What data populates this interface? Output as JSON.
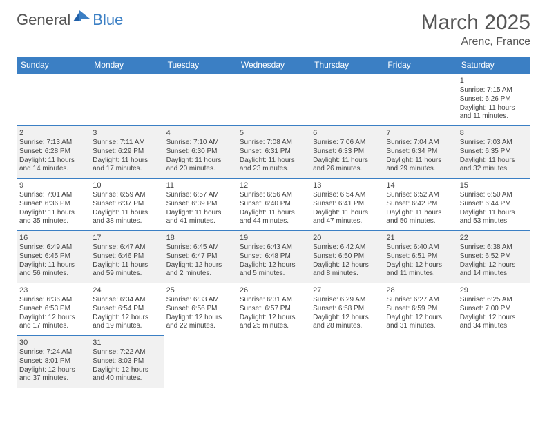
{
  "brand": {
    "general": "General",
    "blue": "Blue"
  },
  "title": "March 2025",
  "location": "Arenc, France",
  "weekdays": [
    "Sunday",
    "Monday",
    "Tuesday",
    "Wednesday",
    "Thursday",
    "Friday",
    "Saturday"
  ],
  "colors": {
    "header_bg": "#3b7fc4",
    "border": "#3b7fc4",
    "shade": "#f1f1f1",
    "logo_gray": "#555555",
    "logo_blue": "#3b7fc4"
  },
  "weeks": [
    [
      null,
      null,
      null,
      null,
      null,
      null,
      {
        "n": "1",
        "sr": "Sunrise: 7:15 AM",
        "ss": "Sunset: 6:26 PM",
        "dl": "Daylight: 11 hours and 11 minutes."
      }
    ],
    [
      {
        "n": "2",
        "sr": "Sunrise: 7:13 AM",
        "ss": "Sunset: 6:28 PM",
        "dl": "Daylight: 11 hours and 14 minutes."
      },
      {
        "n": "3",
        "sr": "Sunrise: 7:11 AM",
        "ss": "Sunset: 6:29 PM",
        "dl": "Daylight: 11 hours and 17 minutes."
      },
      {
        "n": "4",
        "sr": "Sunrise: 7:10 AM",
        "ss": "Sunset: 6:30 PM",
        "dl": "Daylight: 11 hours and 20 minutes."
      },
      {
        "n": "5",
        "sr": "Sunrise: 7:08 AM",
        "ss": "Sunset: 6:31 PM",
        "dl": "Daylight: 11 hours and 23 minutes."
      },
      {
        "n": "6",
        "sr": "Sunrise: 7:06 AM",
        "ss": "Sunset: 6:33 PM",
        "dl": "Daylight: 11 hours and 26 minutes."
      },
      {
        "n": "7",
        "sr": "Sunrise: 7:04 AM",
        "ss": "Sunset: 6:34 PM",
        "dl": "Daylight: 11 hours and 29 minutes."
      },
      {
        "n": "8",
        "sr": "Sunrise: 7:03 AM",
        "ss": "Sunset: 6:35 PM",
        "dl": "Daylight: 11 hours and 32 minutes."
      }
    ],
    [
      {
        "n": "9",
        "sr": "Sunrise: 7:01 AM",
        "ss": "Sunset: 6:36 PM",
        "dl": "Daylight: 11 hours and 35 minutes."
      },
      {
        "n": "10",
        "sr": "Sunrise: 6:59 AM",
        "ss": "Sunset: 6:37 PM",
        "dl": "Daylight: 11 hours and 38 minutes."
      },
      {
        "n": "11",
        "sr": "Sunrise: 6:57 AM",
        "ss": "Sunset: 6:39 PM",
        "dl": "Daylight: 11 hours and 41 minutes."
      },
      {
        "n": "12",
        "sr": "Sunrise: 6:56 AM",
        "ss": "Sunset: 6:40 PM",
        "dl": "Daylight: 11 hours and 44 minutes."
      },
      {
        "n": "13",
        "sr": "Sunrise: 6:54 AM",
        "ss": "Sunset: 6:41 PM",
        "dl": "Daylight: 11 hours and 47 minutes."
      },
      {
        "n": "14",
        "sr": "Sunrise: 6:52 AM",
        "ss": "Sunset: 6:42 PM",
        "dl": "Daylight: 11 hours and 50 minutes."
      },
      {
        "n": "15",
        "sr": "Sunrise: 6:50 AM",
        "ss": "Sunset: 6:44 PM",
        "dl": "Daylight: 11 hours and 53 minutes."
      }
    ],
    [
      {
        "n": "16",
        "sr": "Sunrise: 6:49 AM",
        "ss": "Sunset: 6:45 PM",
        "dl": "Daylight: 11 hours and 56 minutes."
      },
      {
        "n": "17",
        "sr": "Sunrise: 6:47 AM",
        "ss": "Sunset: 6:46 PM",
        "dl": "Daylight: 11 hours and 59 minutes."
      },
      {
        "n": "18",
        "sr": "Sunrise: 6:45 AM",
        "ss": "Sunset: 6:47 PM",
        "dl": "Daylight: 12 hours and 2 minutes."
      },
      {
        "n": "19",
        "sr": "Sunrise: 6:43 AM",
        "ss": "Sunset: 6:48 PM",
        "dl": "Daylight: 12 hours and 5 minutes."
      },
      {
        "n": "20",
        "sr": "Sunrise: 6:42 AM",
        "ss": "Sunset: 6:50 PM",
        "dl": "Daylight: 12 hours and 8 minutes."
      },
      {
        "n": "21",
        "sr": "Sunrise: 6:40 AM",
        "ss": "Sunset: 6:51 PM",
        "dl": "Daylight: 12 hours and 11 minutes."
      },
      {
        "n": "22",
        "sr": "Sunrise: 6:38 AM",
        "ss": "Sunset: 6:52 PM",
        "dl": "Daylight: 12 hours and 14 minutes."
      }
    ],
    [
      {
        "n": "23",
        "sr": "Sunrise: 6:36 AM",
        "ss": "Sunset: 6:53 PM",
        "dl": "Daylight: 12 hours and 17 minutes."
      },
      {
        "n": "24",
        "sr": "Sunrise: 6:34 AM",
        "ss": "Sunset: 6:54 PM",
        "dl": "Daylight: 12 hours and 19 minutes."
      },
      {
        "n": "25",
        "sr": "Sunrise: 6:33 AM",
        "ss": "Sunset: 6:56 PM",
        "dl": "Daylight: 12 hours and 22 minutes."
      },
      {
        "n": "26",
        "sr": "Sunrise: 6:31 AM",
        "ss": "Sunset: 6:57 PM",
        "dl": "Daylight: 12 hours and 25 minutes."
      },
      {
        "n": "27",
        "sr": "Sunrise: 6:29 AM",
        "ss": "Sunset: 6:58 PM",
        "dl": "Daylight: 12 hours and 28 minutes."
      },
      {
        "n": "28",
        "sr": "Sunrise: 6:27 AM",
        "ss": "Sunset: 6:59 PM",
        "dl": "Daylight: 12 hours and 31 minutes."
      },
      {
        "n": "29",
        "sr": "Sunrise: 6:25 AM",
        "ss": "Sunset: 7:00 PM",
        "dl": "Daylight: 12 hours and 34 minutes."
      }
    ],
    [
      {
        "n": "30",
        "sr": "Sunrise: 7:24 AM",
        "ss": "Sunset: 8:01 PM",
        "dl": "Daylight: 12 hours and 37 minutes."
      },
      {
        "n": "31",
        "sr": "Sunrise: 7:22 AM",
        "ss": "Sunset: 8:03 PM",
        "dl": "Daylight: 12 hours and 40 minutes."
      },
      null,
      null,
      null,
      null,
      null
    ]
  ]
}
